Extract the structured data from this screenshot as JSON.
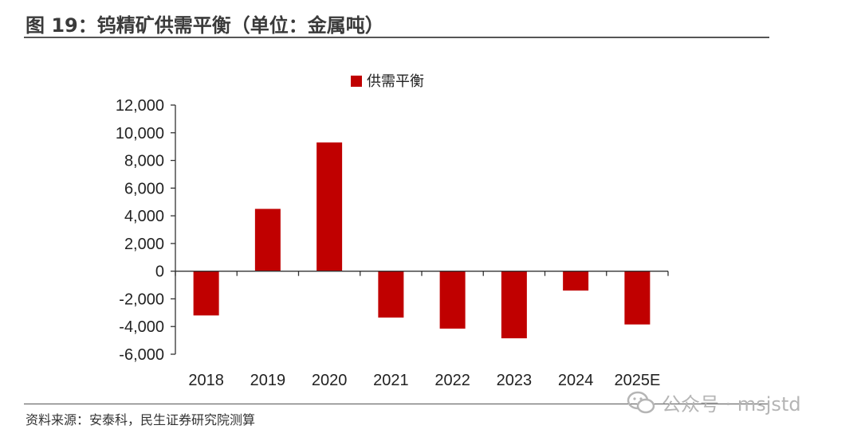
{
  "header": {
    "title": "图 19：钨精矿供需平衡（单位：金属吨）"
  },
  "footer": {
    "source": "资料来源：安泰科，民生证券研究院测算"
  },
  "watermark": {
    "text": "公众号 · msjstd",
    "icon": "wechat-icon"
  },
  "chart_data": {
    "type": "bar",
    "title": "",
    "categories": [
      "2018",
      "2019",
      "2020",
      "2021",
      "2022",
      "2023",
      "2024",
      "2025E"
    ],
    "series": [
      {
        "name": "供需平衡",
        "values": [
          -3200,
          4500,
          9300,
          -3350,
          -4150,
          -4850,
          -1400,
          -3850
        ],
        "color": "#c00000"
      }
    ],
    "yticks": [
      -6000,
      -4000,
      -2000,
      0,
      2000,
      4000,
      6000,
      8000,
      10000,
      12000
    ],
    "ytick_labels": [
      "-6,000",
      "-4,000",
      "-2,000",
      "0",
      "2,000",
      "4,000",
      "6,000",
      "8,000",
      "10,000",
      "12,000"
    ],
    "ylim": [
      -6000,
      12000
    ],
    "xlabel": "",
    "ylabel": "",
    "legend_position": "top-center",
    "grid": false
  }
}
